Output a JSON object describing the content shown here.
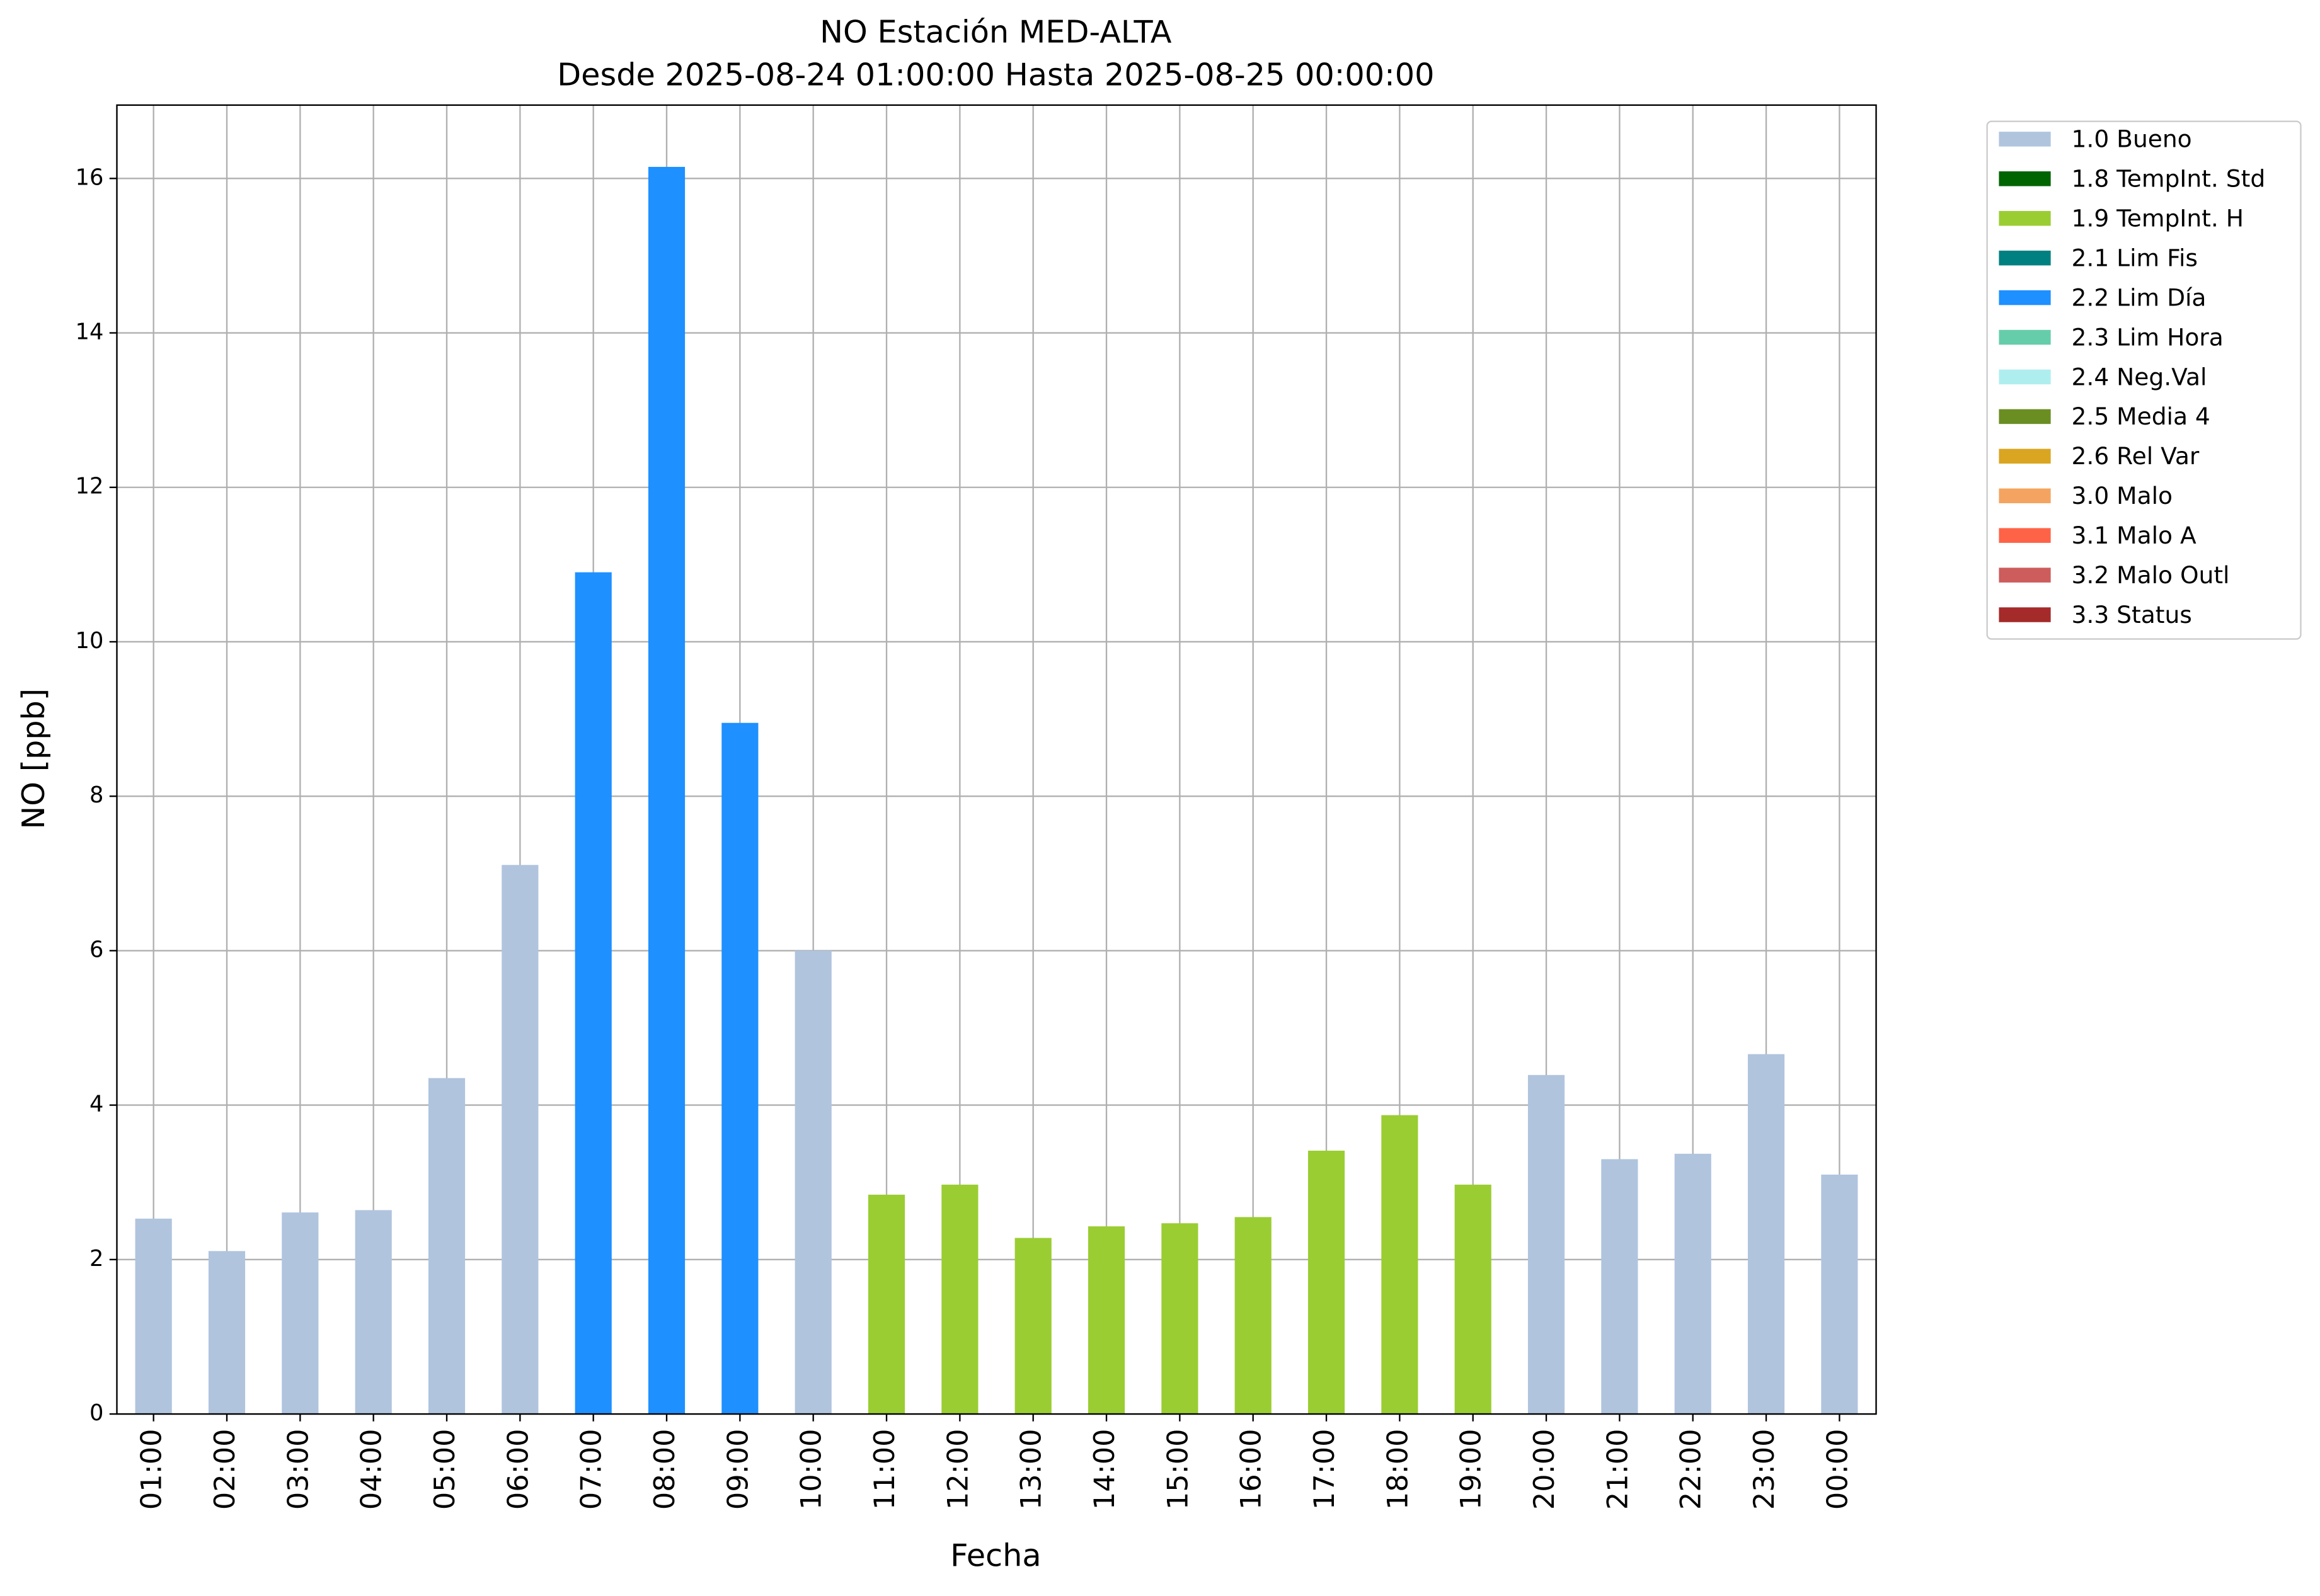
{
  "chart_data": {
    "type": "bar",
    "stacked": true,
    "title": "NO Estación MED-ALTA",
    "subtitle": "Desde 2025-08-24 01:00:00 Hasta 2025-08-25 00:00:00",
    "xlabel": "Fecha",
    "ylabel": "NO [ppb]",
    "categories": [
      "01:00",
      "02:00",
      "03:00",
      "04:00",
      "05:00",
      "06:00",
      "07:00",
      "08:00",
      "09:00",
      "10:00",
      "11:00",
      "12:00",
      "13:00",
      "14:00",
      "15:00",
      "16:00",
      "17:00",
      "18:00",
      "19:00",
      "20:00",
      "21:00",
      "22:00",
      "23:00",
      "00:00"
    ],
    "series": [
      {
        "name": "1.0 Bueno",
        "color": "#b0c4de",
        "values": [
          2.53,
          2.11,
          2.61,
          2.64,
          4.35,
          7.11,
          null,
          null,
          null,
          6.0,
          null,
          null,
          null,
          null,
          null,
          null,
          null,
          null,
          null,
          4.39,
          3.3,
          3.37,
          4.66,
          3.1
        ]
      },
      {
        "name": "1.8 TempInt. Std",
        "color": "#006400",
        "values": [
          null,
          null,
          null,
          null,
          null,
          null,
          null,
          null,
          null,
          null,
          null,
          null,
          null,
          null,
          null,
          null,
          null,
          null,
          null,
          null,
          null,
          null,
          null,
          null
        ]
      },
      {
        "name": "1.9 TempInt. H",
        "color": "#9acd32",
        "values": [
          null,
          null,
          null,
          null,
          null,
          null,
          null,
          null,
          null,
          null,
          2.84,
          2.97,
          2.28,
          2.43,
          2.47,
          2.55,
          3.41,
          3.87,
          2.97,
          null,
          null,
          null,
          null,
          null
        ]
      },
      {
        "name": "2.1 Lim Fis",
        "color": "#008080",
        "values": [
          null,
          null,
          null,
          null,
          null,
          null,
          null,
          null,
          null,
          null,
          null,
          null,
          null,
          null,
          null,
          null,
          null,
          null,
          null,
          null,
          null,
          null,
          null,
          null
        ]
      },
      {
        "name": "2.2 Lim Día",
        "color": "#1e90ff",
        "values": [
          null,
          null,
          null,
          null,
          null,
          null,
          10.9,
          16.15,
          8.95,
          null,
          null,
          null,
          null,
          null,
          null,
          null,
          null,
          null,
          null,
          null,
          null,
          null,
          null,
          null
        ]
      },
      {
        "name": "2.3 Lim Hora",
        "color": "#66cdaa",
        "values": [
          null,
          null,
          null,
          null,
          null,
          null,
          null,
          null,
          null,
          null,
          null,
          null,
          null,
          null,
          null,
          null,
          null,
          null,
          null,
          null,
          null,
          null,
          null,
          null
        ]
      },
      {
        "name": "2.4 Neg.Val",
        "color": "#afeeee",
        "values": [
          null,
          null,
          null,
          null,
          null,
          null,
          null,
          null,
          null,
          null,
          null,
          null,
          null,
          null,
          null,
          null,
          null,
          null,
          null,
          null,
          null,
          null,
          null,
          null
        ]
      },
      {
        "name": "2.5 Media 4",
        "color": "#6b8e23",
        "values": [
          null,
          null,
          null,
          null,
          null,
          null,
          null,
          null,
          null,
          null,
          null,
          null,
          null,
          null,
          null,
          null,
          null,
          null,
          null,
          null,
          null,
          null,
          null,
          null
        ]
      },
      {
        "name": "2.6 Rel Var",
        "color": "#daa520",
        "values": [
          null,
          null,
          null,
          null,
          null,
          null,
          null,
          null,
          null,
          null,
          null,
          null,
          null,
          null,
          null,
          null,
          null,
          null,
          null,
          null,
          null,
          null,
          null,
          null
        ]
      },
      {
        "name": "3.0 Malo",
        "color": "#f4a460",
        "values": [
          null,
          null,
          null,
          null,
          null,
          null,
          null,
          null,
          null,
          null,
          null,
          null,
          null,
          null,
          null,
          null,
          null,
          null,
          null,
          null,
          null,
          null,
          null,
          null
        ]
      },
      {
        "name": "3.1 Malo A",
        "color": "#ff6347",
        "values": [
          null,
          null,
          null,
          null,
          null,
          null,
          null,
          null,
          null,
          null,
          null,
          null,
          null,
          null,
          null,
          null,
          null,
          null,
          null,
          null,
          null,
          null,
          null,
          null
        ]
      },
      {
        "name": "3.2 Malo Outl",
        "color": "#cd5c5c",
        "values": [
          null,
          null,
          null,
          null,
          null,
          null,
          null,
          null,
          null,
          null,
          null,
          null,
          null,
          null,
          null,
          null,
          null,
          null,
          null,
          null,
          null,
          null,
          null,
          null
        ]
      },
      {
        "name": "3.3 Status",
        "color": "#a52a2a",
        "values": [
          null,
          null,
          null,
          null,
          null,
          null,
          null,
          null,
          null,
          null,
          null,
          null,
          null,
          null,
          null,
          null,
          null,
          null,
          null,
          null,
          null,
          null,
          null,
          null
        ]
      }
    ],
    "ylim": [
      0,
      16.95
    ],
    "yticks": [
      0,
      2,
      4,
      6,
      8,
      10,
      12,
      14,
      16
    ],
    "grid": true,
    "legend": "outside upper right"
  }
}
